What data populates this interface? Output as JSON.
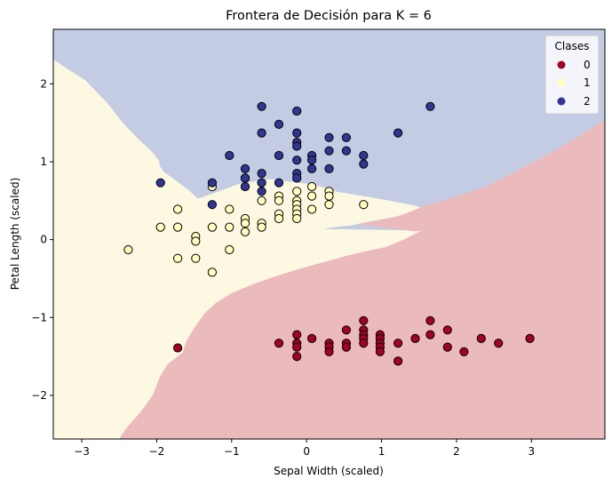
{
  "chart_data": {
    "type": "scatter",
    "title": "Frontera de Decisión para K = 6",
    "xlabel": "Sepal Width (scaled)",
    "ylabel": "Petal Length (scaled)",
    "xlim": [
      -3.38,
      3.98
    ],
    "ylim": [
      -2.56,
      2.7
    ],
    "xticks": [
      -3,
      -2,
      -1,
      0,
      1,
      2,
      3
    ],
    "yticks": [
      -2,
      -1,
      0,
      1,
      2
    ],
    "xtick_labels": [
      "−3",
      "−2",
      "−1",
      "0",
      "1",
      "2",
      "3"
    ],
    "ytick_labels": [
      "−2",
      "−1",
      "0",
      "1",
      "2"
    ],
    "grid": false,
    "legend": {
      "title": "Clases",
      "placement": "top-right",
      "entries": [
        "0",
        "1",
        "2"
      ]
    },
    "class_colors": [
      "#a50026",
      "#ffffbf",
      "#313695"
    ],
    "region_colors": [
      "#ebbabd",
      "#fcf8e1",
      "#c4cce3"
    ],
    "regions": [
      {
        "class": "2",
        "boundary": [
          [
            -3.38,
            2.7
          ],
          [
            3.98,
            2.7
          ],
          [
            3.98,
            1.54
          ],
          [
            3.6,
            1.3
          ],
          [
            3.2,
            1.08
          ],
          [
            2.8,
            0.88
          ],
          [
            2.4,
            0.68
          ],
          [
            2.0,
            0.55
          ],
          [
            1.6,
            0.44
          ],
          [
            1.4,
            0.36
          ],
          [
            1.2,
            0.29
          ],
          [
            0.9,
            0.24
          ],
          [
            0.6,
            0.18
          ],
          [
            0.4,
            0.16
          ],
          [
            0.25,
            0.14
          ],
          [
            1.5,
            0.12
          ],
          [
            1.6,
            0.14
          ],
          [
            1.7,
            0.18
          ],
          [
            1.5,
            0.3
          ],
          [
            1.65,
            0.38
          ],
          [
            1.4,
            0.45
          ],
          [
            0.9,
            0.54
          ],
          [
            0.4,
            0.62
          ],
          [
            0.2,
            0.68
          ],
          [
            0.0,
            0.72
          ],
          [
            -0.5,
            0.78
          ],
          [
            -0.9,
            0.72
          ],
          [
            -1.3,
            0.58
          ],
          [
            -1.45,
            0.53
          ],
          [
            -1.55,
            0.62
          ],
          [
            -1.75,
            0.77
          ],
          [
            -1.9,
            0.87
          ],
          [
            -1.95,
            0.94
          ],
          [
            -1.97,
            1.02
          ],
          [
            -2.05,
            1.12
          ],
          [
            -2.25,
            1.3
          ],
          [
            -2.45,
            1.5
          ],
          [
            -2.65,
            1.75
          ],
          [
            -2.95,
            2.05
          ],
          [
            -3.2,
            2.2
          ],
          [
            -3.38,
            2.32
          ]
        ]
      },
      {
        "class": "0",
        "boundary": [
          [
            3.98,
            1.54
          ],
          [
            3.6,
            1.3
          ],
          [
            3.2,
            1.08
          ],
          [
            2.8,
            0.88
          ],
          [
            2.4,
            0.68
          ],
          [
            2.0,
            0.55
          ],
          [
            1.6,
            0.44
          ],
          [
            1.4,
            0.36
          ],
          [
            1.2,
            0.29
          ],
          [
            0.95,
            0.24
          ],
          [
            0.7,
            0.2
          ],
          [
            1.45,
            0.11
          ],
          [
            1.55,
            0.12
          ],
          [
            1.3,
            0.0
          ],
          [
            1.05,
            -0.1
          ],
          [
            0.8,
            -0.15
          ],
          [
            0.5,
            -0.22
          ],
          [
            0.2,
            -0.3
          ],
          [
            -0.1,
            -0.38
          ],
          [
            -0.4,
            -0.47
          ],
          [
            -0.7,
            -0.57
          ],
          [
            -1.0,
            -0.69
          ],
          [
            -1.2,
            -0.81
          ],
          [
            -1.35,
            -0.94
          ],
          [
            -1.5,
            -1.14
          ],
          [
            -1.6,
            -1.3
          ],
          [
            -1.65,
            -1.45
          ],
          [
            -1.85,
            -1.6
          ],
          [
            -1.95,
            -1.75
          ],
          [
            -2.05,
            -2.0
          ],
          [
            -2.2,
            -2.2
          ],
          [
            -2.4,
            -2.42
          ],
          [
            -2.5,
            -2.56
          ],
          [
            3.98,
            -2.56
          ]
        ]
      }
    ],
    "points": {
      "class_0": [
        [
          -0.37,
          -1.33
        ],
        [
          -0.13,
          -1.22
        ],
        [
          -0.13,
          -1.33
        ],
        [
          -0.13,
          -1.38
        ],
        [
          -0.13,
          -1.5
        ],
        [
          0.07,
          -1.27
        ],
        [
          0.3,
          -1.33
        ],
        [
          0.3,
          -1.38
        ],
        [
          0.3,
          -1.44
        ],
        [
          0.53,
          -1.16
        ],
        [
          0.53,
          -1.33
        ],
        [
          0.53,
          -1.38
        ],
        [
          0.76,
          -1.04
        ],
        [
          0.76,
          -1.16
        ],
        [
          0.76,
          -1.22
        ],
        [
          0.76,
          -1.27
        ],
        [
          0.76,
          -1.33
        ],
        [
          0.98,
          -1.22
        ],
        [
          0.98,
          -1.27
        ],
        [
          0.98,
          -1.33
        ],
        [
          0.98,
          -1.38
        ],
        [
          0.98,
          -1.44
        ],
        [
          1.22,
          -1.33
        ],
        [
          1.22,
          -1.56
        ],
        [
          1.45,
          -1.27
        ],
        [
          1.65,
          -1.04
        ],
        [
          1.65,
          -1.22
        ],
        [
          1.88,
          -1.16
        ],
        [
          1.88,
          -1.38
        ],
        [
          2.1,
          -1.44
        ],
        [
          2.33,
          -1.27
        ],
        [
          2.56,
          -1.33
        ],
        [
          2.98,
          -1.27
        ],
        [
          -1.72,
          -1.39
        ]
      ],
      "class_1": [
        [
          -2.38,
          -0.13
        ],
        [
          -1.95,
          0.16
        ],
        [
          -1.72,
          0.39
        ],
        [
          -1.72,
          0.16
        ],
        [
          -1.72,
          -0.24
        ],
        [
          -1.48,
          0.04
        ],
        [
          -1.48,
          -0.02
        ],
        [
          -1.48,
          -0.24
        ],
        [
          -1.26,
          0.68
        ],
        [
          -1.26,
          0.16
        ],
        [
          -1.26,
          -0.42
        ],
        [
          -1.03,
          0.39
        ],
        [
          -1.03,
          0.16
        ],
        [
          -1.03,
          -0.13
        ],
        [
          -0.82,
          0.79
        ],
        [
          -0.82,
          0.27
        ],
        [
          -0.82,
          0.21
        ],
        [
          -0.82,
          0.1
        ],
        [
          -0.6,
          0.21
        ],
        [
          -0.6,
          0.16
        ],
        [
          -0.6,
          0.5
        ],
        [
          -0.37,
          0.56
        ],
        [
          -0.37,
          0.5
        ],
        [
          -0.37,
          0.33
        ],
        [
          -0.37,
          0.27
        ],
        [
          -0.13,
          0.62
        ],
        [
          -0.13,
          0.5
        ],
        [
          -0.13,
          0.45
        ],
        [
          -0.13,
          0.39
        ],
        [
          -0.13,
          0.33
        ],
        [
          -0.13,
          0.27
        ],
        [
          0.07,
          0.68
        ],
        [
          0.07,
          0.56
        ],
        [
          0.07,
          0.39
        ],
        [
          0.3,
          0.62
        ],
        [
          0.3,
          0.56
        ],
        [
          0.3,
          0.45
        ],
        [
          0.76,
          0.45
        ]
      ],
      "class_2": [
        [
          -1.95,
          0.73
        ],
        [
          -1.26,
          0.73
        ],
        [
          -1.26,
          0.45
        ],
        [
          -1.03,
          1.08
        ],
        [
          -0.82,
          0.91
        ],
        [
          -0.82,
          0.79
        ],
        [
          -0.82,
          0.68
        ],
        [
          -0.6,
          1.71
        ],
        [
          -0.6,
          1.37
        ],
        [
          -0.6,
          0.85
        ],
        [
          -0.6,
          0.73
        ],
        [
          -0.6,
          0.62
        ],
        [
          -0.37,
          1.48
        ],
        [
          -0.37,
          1.08
        ],
        [
          -0.37,
          0.73
        ],
        [
          -0.13,
          1.65
        ],
        [
          -0.13,
          1.37
        ],
        [
          -0.13,
          1.25
        ],
        [
          -0.13,
          1.2
        ],
        [
          -0.13,
          1.02
        ],
        [
          -0.13,
          0.85
        ],
        [
          -0.13,
          0.79
        ],
        [
          0.07,
          1.08
        ],
        [
          0.07,
          1.02
        ],
        [
          0.07,
          0.91
        ],
        [
          0.3,
          1.31
        ],
        [
          0.3,
          1.14
        ],
        [
          0.3,
          0.91
        ],
        [
          0.53,
          1.31
        ],
        [
          0.53,
          1.14
        ],
        [
          0.76,
          1.08
        ],
        [
          0.76,
          0.97
        ],
        [
          1.22,
          1.37
        ],
        [
          1.65,
          1.71
        ]
      ]
    }
  }
}
